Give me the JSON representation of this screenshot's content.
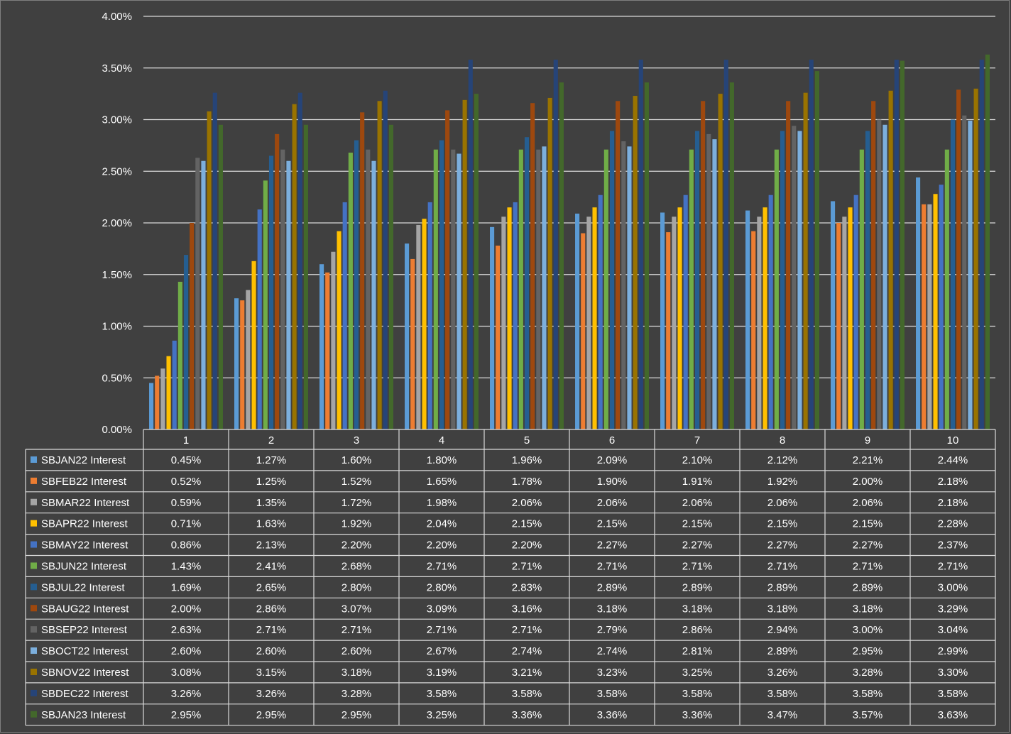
{
  "chart_data": {
    "type": "bar",
    "title": "",
    "xlabel": "",
    "ylabel": "",
    "ylim": [
      0,
      0.04
    ],
    "yticks": [
      "0.00%",
      "0.50%",
      "1.00%",
      "1.50%",
      "2.00%",
      "2.50%",
      "3.00%",
      "3.50%",
      "4.00%"
    ],
    "grid": true,
    "legend": "data-table",
    "categories": [
      "1",
      "2",
      "3",
      "4",
      "5",
      "6",
      "7",
      "8",
      "9",
      "10"
    ],
    "series": [
      {
        "name": "SBJAN22 Interest",
        "color": "#5b9bd5",
        "values": [
          0.0045,
          0.0127,
          0.016,
          0.018,
          0.0196,
          0.0209,
          0.021,
          0.0212,
          0.0221,
          0.0244
        ],
        "labels": [
          "0.45%",
          "1.27%",
          "1.60%",
          "1.80%",
          "1.96%",
          "2.09%",
          "2.10%",
          "2.12%",
          "2.21%",
          "2.44%"
        ]
      },
      {
        "name": "SBFEB22 Interest",
        "color": "#ed7d31",
        "values": [
          0.0052,
          0.0125,
          0.0152,
          0.0165,
          0.0178,
          0.019,
          0.0191,
          0.0192,
          0.02,
          0.0218
        ],
        "labels": [
          "0.52%",
          "1.25%",
          "1.52%",
          "1.65%",
          "1.78%",
          "1.90%",
          "1.91%",
          "1.92%",
          "2.00%",
          "2.18%"
        ]
      },
      {
        "name": "SBMAR22 Interest",
        "color": "#a5a5a5",
        "values": [
          0.0059,
          0.0135,
          0.0172,
          0.0198,
          0.0206,
          0.0206,
          0.0206,
          0.0206,
          0.0206,
          0.0218
        ],
        "labels": [
          "0.59%",
          "1.35%",
          "1.72%",
          "1.98%",
          "2.06%",
          "2.06%",
          "2.06%",
          "2.06%",
          "2.06%",
          "2.18%"
        ]
      },
      {
        "name": "SBAPR22 Interest",
        "color": "#ffc000",
        "values": [
          0.0071,
          0.0163,
          0.0192,
          0.0204,
          0.0215,
          0.0215,
          0.0215,
          0.0215,
          0.0215,
          0.0228
        ],
        "labels": [
          "0.71%",
          "1.63%",
          "1.92%",
          "2.04%",
          "2.15%",
          "2.15%",
          "2.15%",
          "2.15%",
          "2.15%",
          "2.28%"
        ]
      },
      {
        "name": "SBMAY22 Interest",
        "color": "#4472c4",
        "values": [
          0.0086,
          0.0213,
          0.022,
          0.022,
          0.022,
          0.0227,
          0.0227,
          0.0227,
          0.0227,
          0.0237
        ],
        "labels": [
          "0.86%",
          "2.13%",
          "2.20%",
          "2.20%",
          "2.20%",
          "2.27%",
          "2.27%",
          "2.27%",
          "2.27%",
          "2.37%"
        ]
      },
      {
        "name": "SBJUN22 Interest",
        "color": "#70ad47",
        "values": [
          0.0143,
          0.0241,
          0.0268,
          0.0271,
          0.0271,
          0.0271,
          0.0271,
          0.0271,
          0.0271,
          0.0271
        ],
        "labels": [
          "1.43%",
          "2.41%",
          "2.68%",
          "2.71%",
          "2.71%",
          "2.71%",
          "2.71%",
          "2.71%",
          "2.71%",
          "2.71%"
        ]
      },
      {
        "name": "SBJUL22 Interest",
        "color": "#255e91",
        "values": [
          0.0169,
          0.0265,
          0.028,
          0.028,
          0.0283,
          0.0289,
          0.0289,
          0.0289,
          0.0289,
          0.03
        ],
        "labels": [
          "1.69%",
          "2.65%",
          "2.80%",
          "2.80%",
          "2.83%",
          "2.89%",
          "2.89%",
          "2.89%",
          "2.89%",
          "3.00%"
        ]
      },
      {
        "name": "SBAUG22 Interest",
        "color": "#9e480e",
        "values": [
          0.02,
          0.0286,
          0.0307,
          0.0309,
          0.0316,
          0.0318,
          0.0318,
          0.0318,
          0.0318,
          0.0329
        ],
        "labels": [
          "2.00%",
          "2.86%",
          "3.07%",
          "3.09%",
          "3.16%",
          "3.18%",
          "3.18%",
          "3.18%",
          "3.18%",
          "3.29%"
        ]
      },
      {
        "name": "SBSEP22 Interest",
        "color": "#636363",
        "values": [
          0.0263,
          0.0271,
          0.0271,
          0.0271,
          0.0271,
          0.0279,
          0.0286,
          0.0294,
          0.03,
          0.0304
        ],
        "labels": [
          "2.63%",
          "2.71%",
          "2.71%",
          "2.71%",
          "2.71%",
          "2.79%",
          "2.86%",
          "2.94%",
          "3.00%",
          "3.04%"
        ]
      },
      {
        "name": "SBOCT22 Interest",
        "color": "#7cafdd",
        "values": [
          0.026,
          0.026,
          0.026,
          0.0267,
          0.0274,
          0.0274,
          0.0281,
          0.0289,
          0.0295,
          0.0299
        ],
        "labels": [
          "2.60%",
          "2.60%",
          "2.60%",
          "2.67%",
          "2.74%",
          "2.74%",
          "2.81%",
          "2.89%",
          "2.95%",
          "2.99%"
        ]
      },
      {
        "name": "SBNOV22 Interest",
        "color": "#997300",
        "values": [
          0.0308,
          0.0315,
          0.0318,
          0.0319,
          0.0321,
          0.0323,
          0.0325,
          0.0326,
          0.0328,
          0.033
        ],
        "labels": [
          "3.08%",
          "3.15%",
          "3.18%",
          "3.19%",
          "3.21%",
          "3.23%",
          "3.25%",
          "3.26%",
          "3.28%",
          "3.30%"
        ]
      },
      {
        "name": "SBDEC22 Interest",
        "color": "#264478",
        "values": [
          0.0326,
          0.0326,
          0.0328,
          0.0358,
          0.0358,
          0.0358,
          0.0358,
          0.0358,
          0.0358,
          0.0358
        ],
        "labels": [
          "3.26%",
          "3.26%",
          "3.28%",
          "3.58%",
          "3.58%",
          "3.58%",
          "3.58%",
          "3.58%",
          "3.58%",
          "3.58%"
        ]
      },
      {
        "name": "SBJAN23 Interest",
        "color": "#43682b",
        "values": [
          0.0295,
          0.0295,
          0.0295,
          0.0325,
          0.0336,
          0.0336,
          0.0336,
          0.0347,
          0.0357,
          0.0363
        ],
        "labels": [
          "2.95%",
          "2.95%",
          "2.95%",
          "3.25%",
          "3.36%",
          "3.36%",
          "3.36%",
          "3.47%",
          "3.57%",
          "3.63%"
        ]
      }
    ]
  }
}
